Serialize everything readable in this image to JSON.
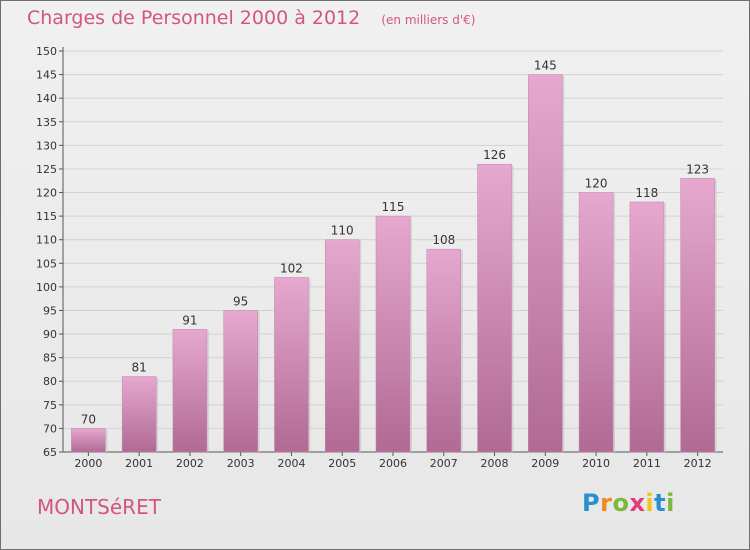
{
  "title": "Charges de Personnel 2000 à 2012",
  "subtitle": "(en milliers d'€)",
  "commune": "MONTSéRET",
  "logo": {
    "text": "Proxiti",
    "letters": [
      "P",
      "r",
      "o",
      "x",
      "i",
      "t",
      "i"
    ],
    "colors": [
      "#2a8fd1",
      "#f08a1c",
      "#7db83c",
      "#e23a7a",
      "#f5c21b",
      "#2a8fd1",
      "#7db83c"
    ]
  },
  "colors": {
    "bar_top": "#e6a8cf",
    "bar_bottom": "#b06a94",
    "accent": "#d2567e"
  },
  "chart_data": {
    "type": "bar",
    "categories": [
      "2000",
      "2001",
      "2002",
      "2003",
      "2004",
      "2005",
      "2006",
      "2007",
      "2008",
      "2009",
      "2010",
      "2011",
      "2012"
    ],
    "values": [
      70,
      81,
      91,
      95,
      102,
      110,
      115,
      108,
      126,
      145,
      120,
      118,
      123
    ],
    "ylim": [
      65,
      150
    ],
    "yticks": [
      65,
      70,
      75,
      80,
      85,
      90,
      95,
      100,
      105,
      110,
      115,
      120,
      125,
      130,
      135,
      140,
      145,
      150
    ],
    "grid": true,
    "legend": "none",
    "data_labels": true
  }
}
